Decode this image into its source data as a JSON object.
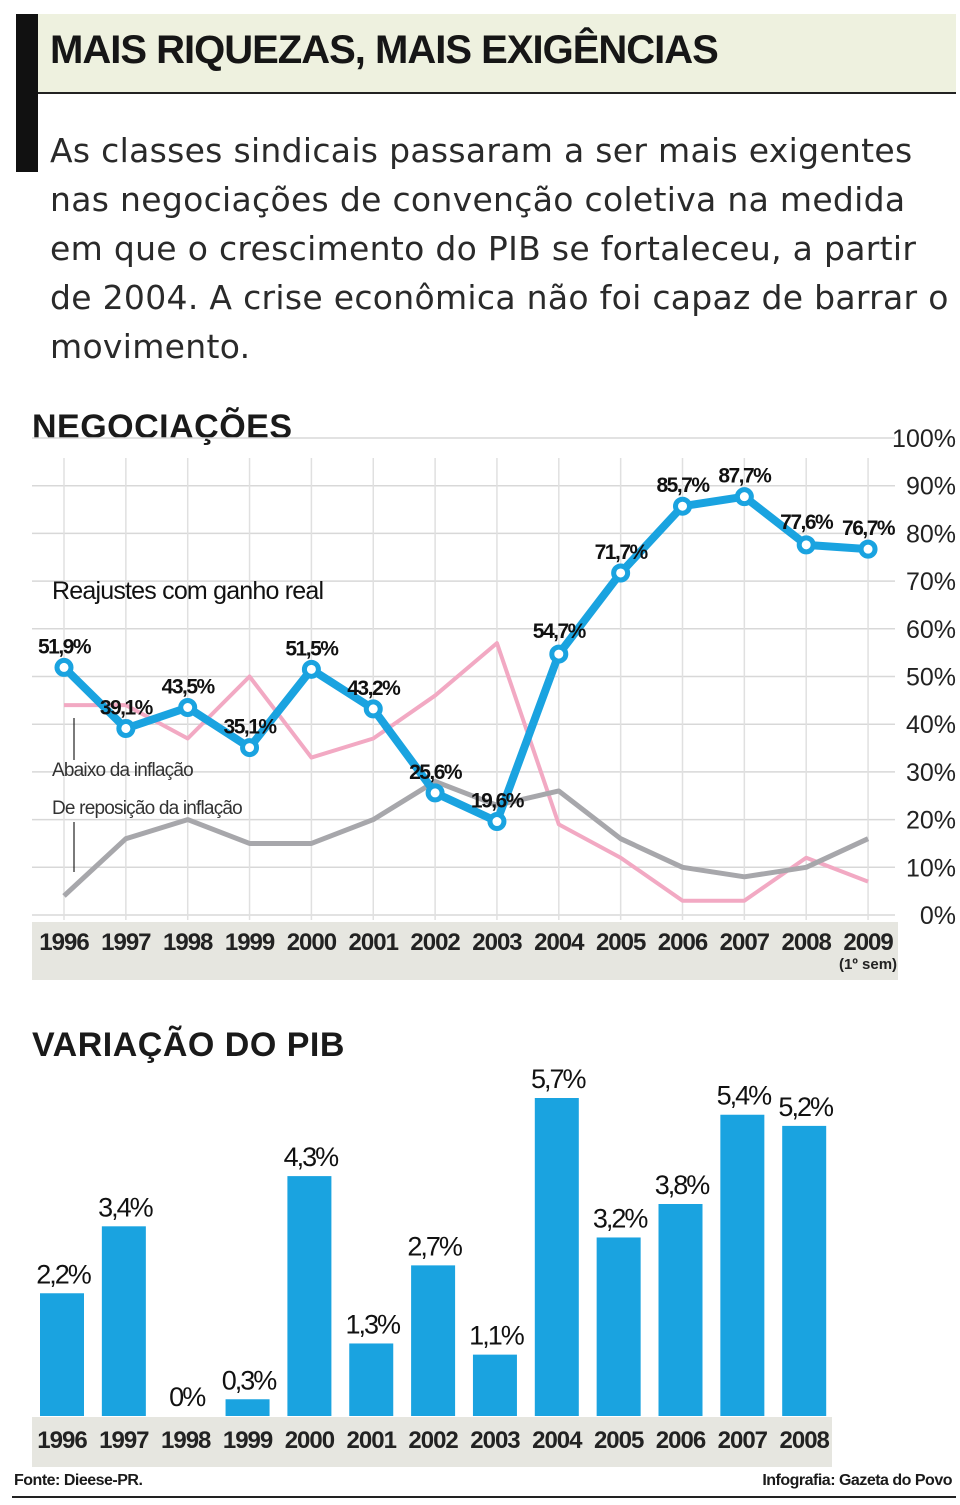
{
  "title": "MAIS RIQUEZAS, MAIS EXIGÊNCIAS",
  "intro": "As classes sindicais passaram a ser mais exigentes nas negociações de convenção coletiva na medida em que o crescimento do PIB se fortaleceu, a partir de 2004. A crise econômica não foi capaz de barrar o movimento.",
  "footer": {
    "source": "Fonte: Dieese-PR.",
    "credit": "Infografia: Gazeta do Povo"
  },
  "colors": {
    "blue": "#1aa3e0",
    "pink": "#f2a9c3",
    "gray": "#a7a7ab",
    "band": "#e6e6e0"
  },
  "chart_data": [
    {
      "type": "line",
      "title": "NEGOCIAÇÕES",
      "x": [
        "1996",
        "1997",
        "1998",
        "1999",
        "2000",
        "2001",
        "2002",
        "2003",
        "2004",
        "2005",
        "2006",
        "2007",
        "2008",
        "2009"
      ],
      "x_note": "(1º sem)",
      "ylim": [
        0,
        100
      ],
      "yticks": [
        "0%",
        "10%",
        "20%",
        "30%",
        "40%",
        "50%",
        "60%",
        "70%",
        "80%",
        "90%",
        "100%"
      ],
      "grid": true,
      "series": [
        {
          "name": "Reajustes com ganho real",
          "color": "#1aa3e0",
          "values": [
            51.9,
            39.1,
            43.5,
            35.1,
            51.5,
            43.2,
            25.6,
            19.6,
            54.7,
            71.7,
            85.7,
            87.7,
            77.6,
            76.7
          ],
          "labels": [
            "51,9%",
            "39,1%",
            "43,5%",
            "35,1%",
            "51,5%",
            "43,2%",
            "25,6%",
            "19,6%",
            "54,7%",
            "71,7%",
            "85,7%",
            "87,7%",
            "77,6%",
            "76,7%"
          ]
        },
        {
          "name": "Abaixo da inflação",
          "color": "#f2a9c3",
          "values": [
            44,
            44,
            37,
            50,
            33,
            37,
            46,
            57,
            19,
            12,
            3,
            3,
            12,
            7
          ]
        },
        {
          "name": "De reposição da inflação",
          "color": "#a7a7ab",
          "values": [
            4,
            16,
            20,
            15,
            15,
            20,
            28,
            23,
            26,
            16,
            10,
            8,
            10,
            16
          ]
        }
      ]
    },
    {
      "type": "bar",
      "title": "VARIAÇÃO DO PIB",
      "categories": [
        "1996",
        "1997",
        "1998",
        "1999",
        "2000",
        "2001",
        "2002",
        "2003",
        "2004",
        "2005",
        "2006",
        "2007",
        "2008"
      ],
      "values": [
        2.2,
        3.4,
        0,
        0.3,
        4.3,
        1.3,
        2.7,
        1.1,
        5.7,
        3.2,
        3.8,
        5.4,
        5.2
      ],
      "labels": [
        "2,2%",
        "3,4%",
        "0%",
        "0,3%",
        "4,3%",
        "1,3%",
        "2,7%",
        "1,1%",
        "5,7%",
        "3,2%",
        "3,8%",
        "5,4%",
        "5,2%"
      ],
      "color": "#1aa3e0"
    }
  ]
}
